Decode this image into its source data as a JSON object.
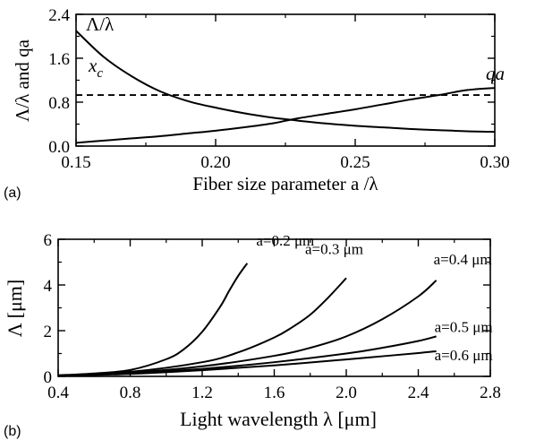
{
  "chart_data": [
    {
      "panel_label": "(a)",
      "type": "line",
      "xlabel": "Fiber size parameter a /λ",
      "ylabel": "Λ/λ and qa",
      "xlim": [
        0.15,
        0.3
      ],
      "ylim": [
        0.0,
        2.4
      ],
      "xticks": [
        "0.15",
        "0.20",
        "0.25",
        "0.30"
      ],
      "yticks": [
        "0.0",
        "0.8",
        "1.6",
        "2.4"
      ],
      "grid": false,
      "series": [
        {
          "name": "Λ/λ",
          "style": "solid",
          "x": [
            0.15,
            0.16,
            0.17,
            0.18,
            0.19,
            0.2,
            0.21,
            0.22,
            0.225,
            0.23,
            0.24,
            0.25,
            0.26,
            0.27,
            0.28,
            0.29,
            0.3
          ],
          "y": [
            2.1,
            1.62,
            1.27,
            1.0,
            0.82,
            0.7,
            0.6,
            0.52,
            0.49,
            0.46,
            0.41,
            0.37,
            0.34,
            0.31,
            0.29,
            0.27,
            0.26
          ]
        },
        {
          "name": "qa",
          "style": "solid",
          "x": [
            0.15,
            0.16,
            0.17,
            0.18,
            0.19,
            0.2,
            0.21,
            0.22,
            0.225,
            0.23,
            0.24,
            0.25,
            0.26,
            0.27,
            0.28,
            0.29,
            0.3
          ],
          "y": [
            0.06,
            0.1,
            0.14,
            0.18,
            0.23,
            0.28,
            0.34,
            0.41,
            0.46,
            0.51,
            0.59,
            0.67,
            0.76,
            0.85,
            0.93,
            1.02,
            1.06
          ]
        },
        {
          "name": "x_c",
          "style": "dashed",
          "x": [
            0.15,
            0.3
          ],
          "y": [
            0.93,
            0.93
          ]
        }
      ],
      "annotations": [
        {
          "text": "Λ/λ",
          "series": "Λ/λ"
        },
        {
          "text": "qa",
          "series": "qa"
        },
        {
          "text": "x",
          "subscript": "c",
          "series": "x_c"
        }
      ]
    },
    {
      "panel_label": "(b)",
      "type": "line",
      "xlabel": "Light wavelength λ [μm]",
      "ylabel": "Λ [μm]",
      "xlim": [
        0.4,
        2.8
      ],
      "ylim": [
        0,
        6
      ],
      "xticks": [
        "0.4",
        "0.8",
        "1.2",
        "1.6",
        "2.0",
        "2.4",
        "2.8"
      ],
      "yticks": [
        "0",
        "2",
        "4",
        "6"
      ],
      "grid": false,
      "series": [
        {
          "name": "a=0.2 μm",
          "x": [
            0.4,
            0.6,
            0.8,
            1.0,
            1.1,
            1.2,
            1.3,
            1.35,
            1.4,
            1.45
          ],
          "y": [
            0.05,
            0.13,
            0.28,
            0.75,
            1.2,
            1.95,
            3.05,
            3.75,
            4.4,
            4.95
          ]
        },
        {
          "name": "a=0.3 μm",
          "x": [
            0.4,
            0.8,
            1.2,
            1.4,
            1.6,
            1.7,
            1.8,
            1.9,
            2.0
          ],
          "y": [
            0.04,
            0.2,
            0.62,
            1.05,
            1.7,
            2.15,
            2.7,
            3.45,
            4.3
          ]
        },
        {
          "name": "a=0.4 μm",
          "x": [
            0.4,
            0.8,
            1.2,
            1.6,
            1.8,
            2.0,
            2.2,
            2.4,
            2.5
          ],
          "y": [
            0.03,
            0.16,
            0.44,
            0.9,
            1.25,
            1.75,
            2.5,
            3.5,
            4.2
          ]
        },
        {
          "name": "a=0.5 μm",
          "x": [
            0.4,
            0.8,
            1.2,
            1.6,
            2.0,
            2.2,
            2.4,
            2.5
          ],
          "y": [
            0.02,
            0.13,
            0.33,
            0.62,
            1.0,
            1.25,
            1.55,
            1.75
          ]
        },
        {
          "name": "a=0.6 μm",
          "x": [
            0.4,
            0.8,
            1.2,
            1.6,
            2.0,
            2.2,
            2.4,
            2.5
          ],
          "y": [
            0.02,
            0.11,
            0.27,
            0.48,
            0.74,
            0.88,
            1.02,
            1.1
          ]
        }
      ]
    }
  ]
}
